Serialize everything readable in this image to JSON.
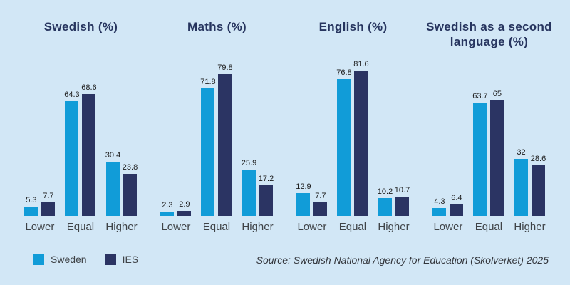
{
  "colors": {
    "background": "#d2e7f6",
    "sweden_blue": "#119cd8",
    "ies_navy": "#2b3463",
    "title_navy": "#27355f",
    "value_label": "#1c1c1c",
    "category_label": "#3f4347"
  },
  "chart_data": [
    {
      "type": "bar",
      "title": "Swedish (%)",
      "categories": [
        "Lower",
        "Equal",
        "Higher"
      ],
      "series": [
        {
          "name": "Sweden",
          "color_key": "sweden_blue",
          "values": [
            5.3,
            64.3,
            30.4
          ]
        },
        {
          "name": "IES",
          "color_key": "ies_navy",
          "values": [
            7.7,
            68.6,
            23.8
          ]
        }
      ],
      "ylim": [
        0,
        100
      ],
      "grid": false,
      "value_labels": true
    },
    {
      "type": "bar",
      "title": "Maths (%)",
      "categories": [
        "Lower",
        "Equal",
        "Higher"
      ],
      "series": [
        {
          "name": "Sweden",
          "color_key": "sweden_blue",
          "values": [
            2.3,
            71.8,
            25.9
          ]
        },
        {
          "name": "IES",
          "color_key": "ies_navy",
          "values": [
            2.9,
            79.8,
            17.2
          ]
        }
      ],
      "ylim": [
        0,
        100
      ],
      "grid": false,
      "value_labels": true
    },
    {
      "type": "bar",
      "title": "English (%)",
      "categories": [
        "Lower",
        "Equal",
        "Higher"
      ],
      "series": [
        {
          "name": "Sweden",
          "color_key": "sweden_blue",
          "values": [
            12.9,
            76.8,
            10.2
          ]
        },
        {
          "name": "IES",
          "color_key": "ies_navy",
          "values": [
            7.7,
            81.6,
            10.7
          ]
        }
      ],
      "ylim": [
        0,
        100
      ],
      "grid": false,
      "value_labels": true
    },
    {
      "type": "bar",
      "title": "Swedish as a second language (%)",
      "categories": [
        "Lower",
        "Equal",
        "Higher"
      ],
      "series": [
        {
          "name": "Sweden",
          "color_key": "sweden_blue",
          "values": [
            4.3,
            63.7,
            32
          ]
        },
        {
          "name": "IES",
          "color_key": "ies_navy",
          "values": [
            6.4,
            65,
            28.6
          ]
        }
      ],
      "ylim": [
        0,
        100
      ],
      "grid": false,
      "value_labels": true
    }
  ],
  "legend": {
    "items": [
      {
        "label": "Sweden",
        "color_key": "sweden_blue"
      },
      {
        "label": "IES",
        "color_key": "ies_navy"
      }
    ],
    "position": "bottom-left"
  },
  "source_note": "Source: Swedish National Agency for Education (Skolverket) 2025"
}
